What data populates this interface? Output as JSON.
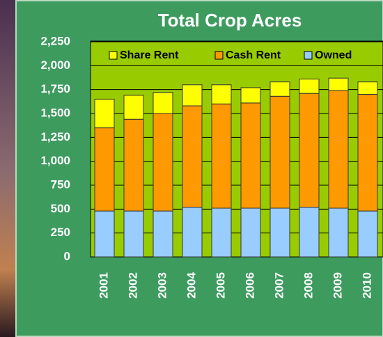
{
  "chart_data": {
    "type": "stacked_bar",
    "title": "Total Crop Acres",
    "categories": [
      "2001",
      "2002",
      "2003",
      "2004",
      "2005",
      "2006",
      "2007",
      "2008",
      "2009",
      "2010"
    ],
    "series": [
      {
        "name": "Owned",
        "color": "#99ccff",
        "values": [
          480,
          480,
          480,
          520,
          510,
          510,
          510,
          520,
          510,
          480
        ]
      },
      {
        "name": "Cash Rent",
        "color": "#ff9900",
        "values": [
          870,
          960,
          1020,
          1060,
          1090,
          1100,
          1170,
          1190,
          1230,
          1220
        ]
      },
      {
        "name": "Share Rent",
        "color": "#ffff00",
        "values": [
          300,
          250,
          220,
          220,
          200,
          160,
          150,
          150,
          130,
          130
        ]
      }
    ],
    "ylim": [
      0,
      2250
    ],
    "yticks": [
      0,
      250,
      500,
      750,
      {
        "value": 1000,
        "label": "1,000"
      },
      {
        "value": 1250,
        "label": "1,250"
      },
      {
        "value": 1500,
        "label": "1,500"
      },
      {
        "value": 1750,
        "label": "1,750"
      },
      {
        "value": 2000,
        "label": "2,000"
      },
      {
        "value": 2250,
        "label": "2,250"
      }
    ],
    "grid": true
  }
}
